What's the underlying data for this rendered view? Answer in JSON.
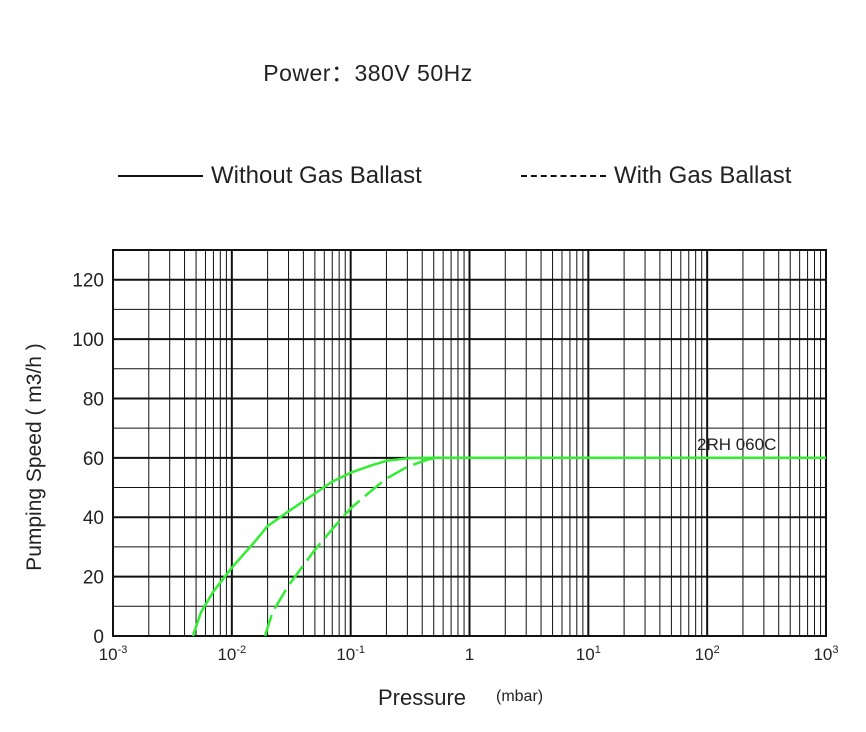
{
  "title": "Power：380V 50Hz",
  "legend": {
    "solid_label": "Without Gas Ballast",
    "dashed_label": "With Gas Ballast"
  },
  "colors": {
    "curve": "#33ee33",
    "grid": "#111111",
    "text": "#222222"
  },
  "chart_data": {
    "type": "line",
    "title": "Power：380V 50Hz",
    "xlabel": "Pressure",
    "xlabel_unit": "(mbar)",
    "ylabel": "Pumping Speed ( m3/h )",
    "x_scale": "log",
    "xlim": [
      0.001,
      1000
    ],
    "ylim": [
      0,
      130
    ],
    "grid": true,
    "legend_position": "top",
    "x_tick_labels": [
      {
        "base": "10",
        "exp": "-3"
      },
      {
        "base": "10",
        "exp": "-2"
      },
      {
        "base": "10",
        "exp": "-1"
      },
      {
        "base": "1",
        "exp": ""
      },
      {
        "base": "10",
        "exp": "1"
      },
      {
        "base": "10",
        "exp": "2"
      },
      {
        "base": "10",
        "exp": "3"
      }
    ],
    "y_ticks": [
      0,
      20,
      40,
      60,
      80,
      100,
      120
    ],
    "annotation": "2RH 060C",
    "series": [
      {
        "name": "Without Gas Ballast",
        "style": "solid",
        "points": [
          [
            0.0047,
            0
          ],
          [
            0.0055,
            8
          ],
          [
            0.007,
            15
          ],
          [
            0.01,
            23
          ],
          [
            0.015,
            31
          ],
          [
            0.02,
            37
          ],
          [
            0.03,
            42
          ],
          [
            0.05,
            48
          ],
          [
            0.07,
            52
          ],
          [
            0.1,
            55
          ],
          [
            0.15,
            57.5
          ],
          [
            0.2,
            59
          ],
          [
            0.3,
            59.8
          ],
          [
            0.5,
            60
          ],
          [
            1,
            60
          ],
          [
            10,
            60
          ],
          [
            100,
            60
          ],
          [
            1000,
            60
          ]
        ]
      },
      {
        "name": "With Gas Ballast",
        "style": "dashed",
        "points": [
          [
            0.019,
            0
          ],
          [
            0.022,
            8
          ],
          [
            0.03,
            17
          ],
          [
            0.05,
            29
          ],
          [
            0.07,
            36
          ],
          [
            0.1,
            43
          ],
          [
            0.15,
            49
          ],
          [
            0.2,
            53
          ],
          [
            0.3,
            57
          ],
          [
            0.45,
            59.5
          ],
          [
            0.6,
            60
          ],
          [
            1,
            60
          ],
          [
            10,
            60
          ],
          [
            100,
            60
          ],
          [
            1000,
            60
          ]
        ]
      }
    ]
  }
}
